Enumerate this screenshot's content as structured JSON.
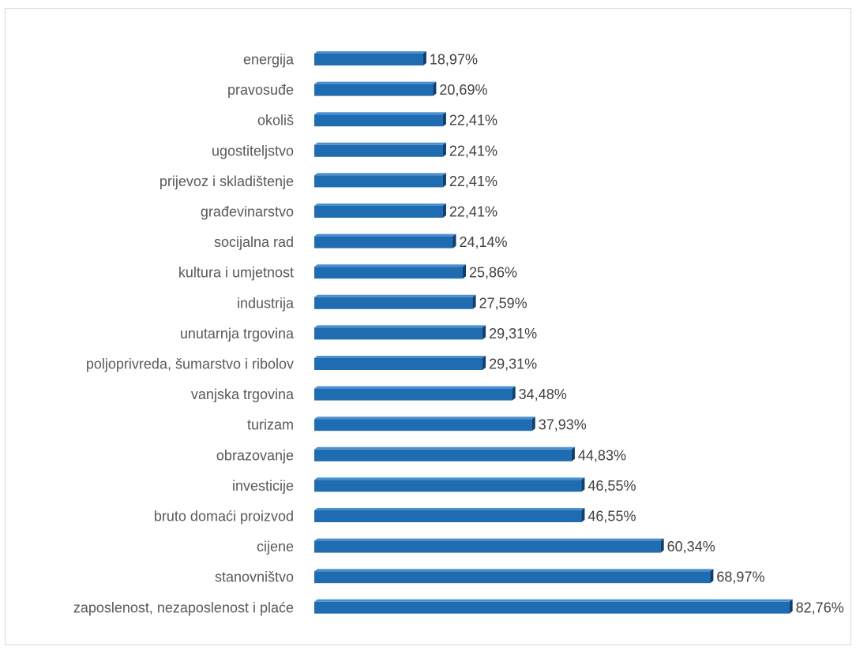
{
  "chart_data": {
    "type": "bar",
    "orientation": "horizontal",
    "title": "",
    "xlabel": "",
    "ylabel": "",
    "xlim": [
      0,
      90
    ],
    "grid": false,
    "legend": "none",
    "bar_color": "#1f6cb1",
    "bar_shade_color": "#0e3f6e",
    "value_suffix": "%",
    "categories": [
      "energija",
      "pravosuđe",
      "okoliš",
      "ugostiteljstvo",
      "prijevoz i skladištenje",
      "građevinarstvo",
      "socijalna rad",
      "kultura i umjetnost",
      "industrija",
      "unutarnja trgovina",
      "poljoprivreda,  šumarstvo i ribolov",
      "vanjska trgovina",
      "turizam",
      "obrazovanje",
      "investicije",
      "bruto domaći proizvod",
      "cijene",
      "stanovništvo",
      "zaposlenost, nezaposlenost i plaće"
    ],
    "values": [
      18.97,
      20.69,
      22.41,
      22.41,
      22.41,
      22.41,
      24.14,
      25.86,
      27.59,
      29.31,
      29.31,
      34.48,
      37.93,
      44.83,
      46.55,
      46.55,
      60.34,
      68.97,
      82.76
    ],
    "value_labels": [
      "18,97%",
      "20,69%",
      "22,41%",
      "22,41%",
      "22,41%",
      "22,41%",
      "24,14%",
      "25,86%",
      "27,59%",
      "29,31%",
      "29,31%",
      "34,48%",
      "37,93%",
      "44,83%",
      "46,55%",
      "46,55%",
      "60,34%",
      "68,97%",
      "82,76%"
    ]
  }
}
